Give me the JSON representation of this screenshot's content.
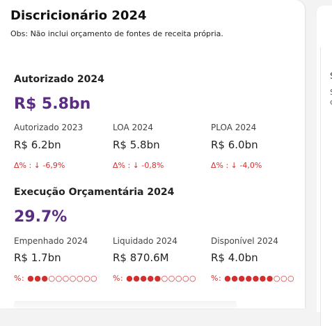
{
  "card": {
    "title": "Discricionário 2024",
    "note": "Obs: Não inclui orçamento de fontes de receita própria."
  },
  "autorizado": {
    "title": "Autorizado 2024",
    "big_value": "R$ 5.8bn",
    "metrics": [
      {
        "label": "Autorizado 2023",
        "value": "R$ 6.2bn",
        "delta": "Δ% : ↓ -6,9%"
      },
      {
        "label": "LOA 2024",
        "value": "R$ 5.8bn",
        "delta": "Δ% : ↓ -0,8%"
      },
      {
        "label": "PLOA 2024",
        "value": "R$ 6.0bn",
        "delta": "Δ% : ↓ -4,0%"
      }
    ]
  },
  "execucao": {
    "title": "Execução Orçamentária 2024",
    "big_value": "29.7%",
    "metrics": [
      {
        "label": "Empenhado 2024",
        "value": "R$ 1.7bn",
        "pct_prefix": "%:",
        "dots": "●●●○○○○○○○",
        "filled": 3
      },
      {
        "label": "Liquidado 2024",
        "value": "R$ 870.6M",
        "pct_prefix": "%:",
        "dots": "●●●●●○○○○○",
        "filled": 5
      },
      {
        "label": "Disponível 2024",
        "value": "R$ 4.0bn",
        "pct_prefix": "%:",
        "dots": "●●●●●●●○○○",
        "filled": 7
      }
    ]
  },
  "side_panel": {
    "peek_1": "S",
    "peek_2": "S\nc"
  },
  "colors": {
    "accent": "#5b2c83",
    "negative": "#d32f2f"
  }
}
